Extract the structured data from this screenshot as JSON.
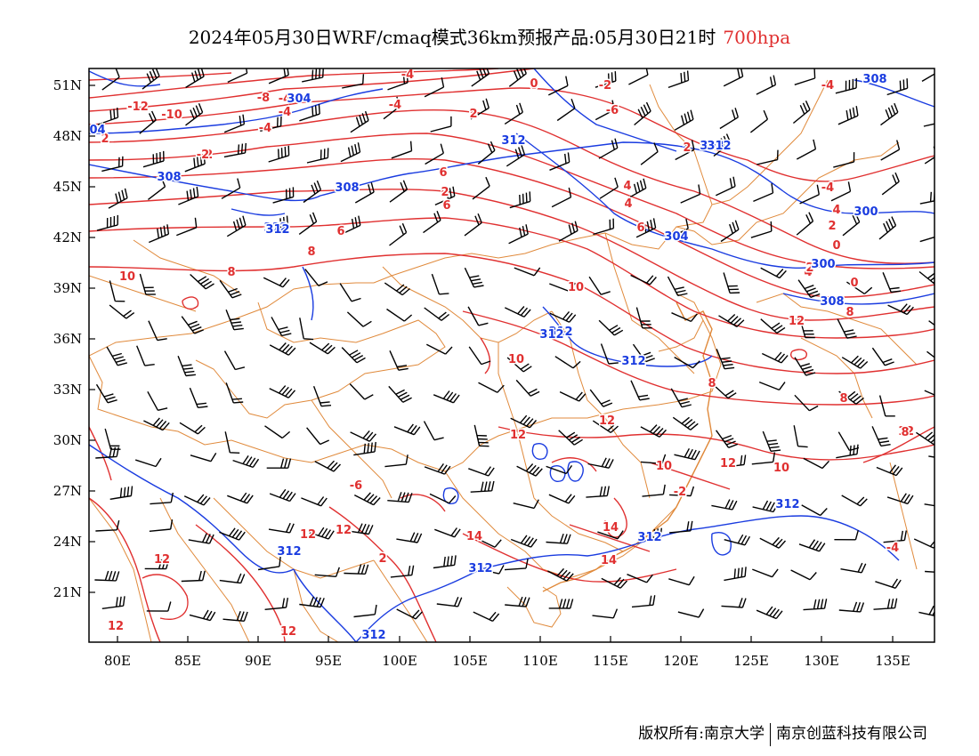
{
  "header": {
    "title": "2024年05月30日WRF/cmaq模式36km预报产品:05月30日21时",
    "level": "700hpa"
  },
  "colors": {
    "temperature": "#e03030",
    "height": "#1a3ce0",
    "border": "#e08a3c",
    "wind": "#000000"
  },
  "axes": {
    "x_ticks": [
      "80E",
      "85E",
      "90E",
      "95E",
      "100E",
      "105E",
      "110E",
      "115E",
      "120E",
      "125E",
      "130E",
      "135E"
    ],
    "y_ticks": [
      "51N",
      "48N",
      "45N",
      "42N",
      "39N",
      "36N",
      "33N",
      "30N",
      "27N",
      "24N",
      "21N"
    ]
  },
  "labels": {
    "temperature": [
      "-12",
      "-10",
      "-8",
      "-4",
      "-4",
      "0",
      "-6",
      "-4",
      "-2",
      "2",
      "2",
      "4",
      "4",
      "6",
      "6",
      "6",
      "8",
      "8",
      "10",
      "10",
      "10",
      "12",
      "12",
      "10",
      "10",
      "12",
      "12",
      "12",
      "12",
      "14",
      "14",
      "14",
      "12",
      "12",
      "2",
      "-6",
      "-4",
      "-2",
      "-4",
      "2",
      "0",
      "4",
      "8",
      "12",
      "-2",
      "2",
      "4",
      "2",
      "0",
      "-4",
      "-2",
      "6",
      "8",
      "8",
      "-4",
      "0",
      "12",
      "-4",
      "2",
      "8"
    ],
    "height": [
      "308",
      "312",
      "304",
      "308",
      "312",
      "308",
      "304",
      "308",
      "300",
      "300",
      "304",
      "308",
      "312",
      "312",
      "312",
      "312",
      "312",
      "312",
      "312",
      "312",
      "312",
      "312"
    ]
  },
  "footer": {
    "copyright": "版权所有:南京大学",
    "company": "南京创蓝科技有限公司"
  }
}
